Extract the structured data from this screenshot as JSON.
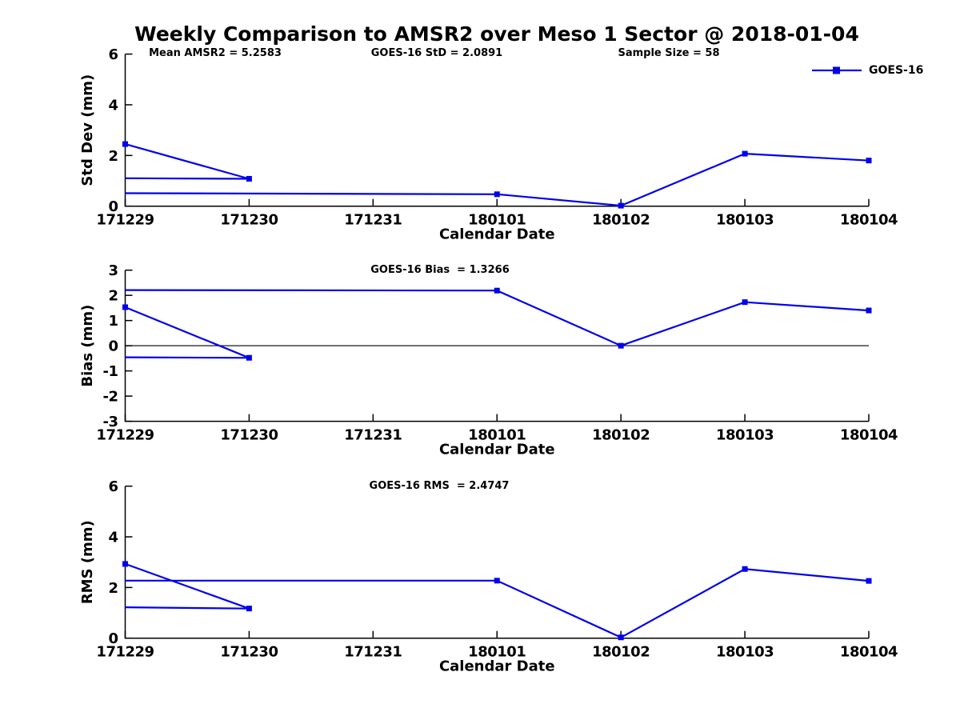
{
  "title": "Weekly Comparison to AMSR2 over Meso 1 Sector @ 2018-01-04",
  "legend": {
    "label": "GOES-16"
  },
  "colors": {
    "line": "#0000EE",
    "axis": "#000000",
    "zero_line": "#1a1a1a",
    "text": "#000000"
  },
  "chart_data": [
    {
      "type": "line",
      "name": "std-dev",
      "title": "",
      "ylabel": "Std Dev (mm)",
      "xlabel": "Calendar Date",
      "annotations": [
        "Mean AMSR2 = 5.2583",
        "GOES-16 StD = 2.0891",
        "Sample Size = 58"
      ],
      "x_categories": [
        "171229",
        "171230",
        "171231",
        "180101",
        "180102",
        "180103",
        "180104"
      ],
      "ylim": [
        0,
        6
      ],
      "yticks": [
        0,
        2,
        4,
        6
      ],
      "grid": false,
      "zero_line": false,
      "series": [
        {
          "name": "GOES-16",
          "markers": [
            [
              0,
              2.45
            ],
            [
              1,
              1.08
            ],
            [
              3,
              0.47
            ],
            [
              4,
              0.02
            ],
            [
              5,
              2.07
            ],
            [
              6,
              1.8
            ]
          ],
          "polylines": [
            [
              [
                0,
                2.45
              ],
              [
                1,
                1.08
              ]
            ],
            [
              [
                0,
                1.1
              ],
              [
                1,
                1.08
              ]
            ],
            [
              [
                0,
                0.51
              ],
              [
                3,
                0.47
              ],
              [
                4,
                0.02
              ],
              [
                5,
                2.07
              ],
              [
                6,
                1.8
              ]
            ]
          ]
        }
      ]
    },
    {
      "type": "line",
      "name": "bias",
      "title": "",
      "ylabel": "Bias (mm)",
      "xlabel": "Calendar Date",
      "annotations": [
        "GOES-16 Bias  = 1.3266"
      ],
      "x_categories": [
        "171229",
        "171230",
        "171231",
        "180101",
        "180102",
        "180103",
        "180104"
      ],
      "ylim": [
        -3,
        3
      ],
      "yticks": [
        -3,
        -2,
        -1,
        0,
        1,
        2,
        3
      ],
      "grid": false,
      "zero_line": true,
      "series": [
        {
          "name": "GOES-16",
          "markers": [
            [
              0,
              1.53
            ],
            [
              1,
              -0.48
            ],
            [
              3,
              2.19
            ],
            [
              4,
              0.0
            ],
            [
              5,
              1.73
            ],
            [
              6,
              1.4
            ]
          ],
          "polylines": [
            [
              [
                0,
                1.53
              ],
              [
                1,
                -0.48
              ]
            ],
            [
              [
                0,
                -0.46
              ],
              [
                1,
                -0.48
              ]
            ],
            [
              [
                0,
                2.21
              ],
              [
                3,
                2.19
              ],
              [
                4,
                0.0
              ],
              [
                5,
                1.73
              ],
              [
                6,
                1.4
              ]
            ]
          ]
        }
      ]
    },
    {
      "type": "line",
      "name": "rms",
      "title": "",
      "ylabel": "RMS (mm)",
      "xlabel": "Calendar Date",
      "annotations": [
        "GOES-16 RMS  = 2.4747"
      ],
      "x_categories": [
        "171229",
        "171230",
        "171231",
        "180101",
        "180102",
        "180103",
        "180104"
      ],
      "ylim": [
        0,
        6
      ],
      "yticks": [
        0,
        2,
        4,
        6
      ],
      "grid": false,
      "zero_line": false,
      "series": [
        {
          "name": "GOES-16",
          "markers": [
            [
              0,
              2.93
            ],
            [
              1,
              1.17
            ],
            [
              3,
              2.27
            ],
            [
              4,
              0.03
            ],
            [
              5,
              2.73
            ],
            [
              6,
              2.26
            ]
          ],
          "polylines": [
            [
              [
                0,
                2.93
              ],
              [
                1,
                1.17
              ]
            ],
            [
              [
                0,
                1.22
              ],
              [
                1,
                1.17
              ]
            ],
            [
              [
                0,
                2.27
              ],
              [
                3,
                2.27
              ],
              [
                4,
                0.03
              ],
              [
                5,
                2.73
              ],
              [
                6,
                2.26
              ]
            ]
          ]
        }
      ]
    }
  ]
}
